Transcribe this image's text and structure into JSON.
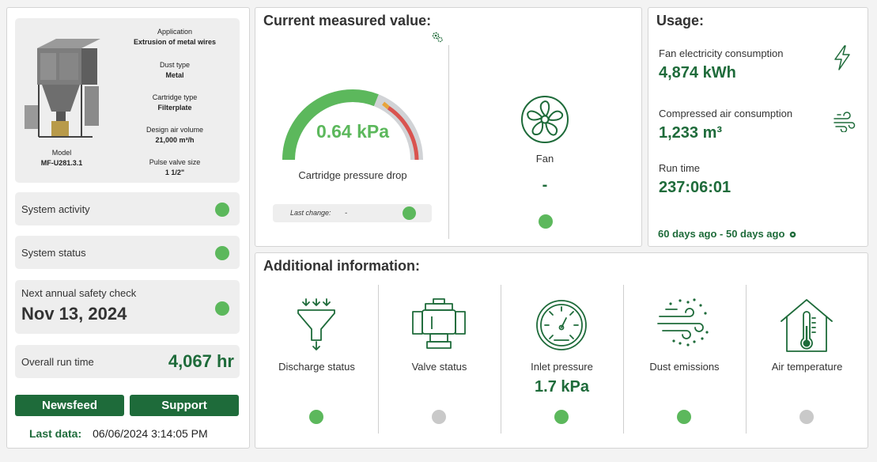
{
  "machine": {
    "model_label": "Model",
    "model": "MF-U281.3.1",
    "specs": [
      {
        "label": "Application",
        "value": "Extrusion of metal wires"
      },
      {
        "label": "Dust type",
        "value": "Metal"
      },
      {
        "label": "Cartridge type",
        "value": "Filterplate"
      },
      {
        "label": "Design air volume",
        "value": "21,000 m³/h"
      },
      {
        "label": "Pulse valve size",
        "value": "1 1/2\""
      }
    ]
  },
  "left_status": {
    "system_activity": {
      "label": "System activity",
      "status": "green"
    },
    "system_status": {
      "label": "System status",
      "status": "green"
    },
    "safety_check": {
      "label": "Next annual safety check",
      "date": "Nov 13, 2024",
      "status": "green"
    },
    "overall_run_time": {
      "label": "Overall run time",
      "value": "4,067 hr"
    }
  },
  "buttons": {
    "newsfeed": "Newsfeed",
    "support": "Support"
  },
  "last_data": {
    "label": "Last data:",
    "value": "06/06/2024 3:14:05 PM"
  },
  "current": {
    "title": "Current measured value:",
    "gauge": {
      "value": "0.64 kPa",
      "label": "Cartridge pressure drop",
      "fill_fraction": 0.62
    },
    "last_change": {
      "label": "Last change:",
      "value": "-",
      "status": "green"
    },
    "fan": {
      "label": "Fan",
      "value": "-",
      "status": "green"
    }
  },
  "usage": {
    "title": "Usage:",
    "fan_electricity": {
      "label": "Fan electricity consumption",
      "value": "4,874 kWh"
    },
    "compressed_air": {
      "label": "Compressed air consumption",
      "value": "1,233 m³"
    },
    "run_time": {
      "label": "Run time",
      "value": "237:06:01"
    },
    "range": "60 days ago - 50 days ago"
  },
  "additional": {
    "title": "Additional information:",
    "items": [
      {
        "label": "Discharge status",
        "value": "",
        "status": "green",
        "icon": "funnel-icon"
      },
      {
        "label": "Valve status",
        "value": "",
        "status": "grey",
        "icon": "valve-icon"
      },
      {
        "label": "Inlet pressure",
        "value": "1.7 kPa",
        "status": "green",
        "icon": "pressure-gauge-icon"
      },
      {
        "label": "Dust emissions",
        "value": "",
        "status": "green",
        "icon": "dust-wind-icon"
      },
      {
        "label": "Air temperature",
        "value": "",
        "status": "grey",
        "icon": "house-thermometer-icon"
      }
    ]
  },
  "colors": {
    "brand_green": "#1e6b3a",
    "status_green": "#5cb85c",
    "status_grey": "#c9c9c9",
    "gauge_orange": "#e8a43a",
    "gauge_red": "#d9534f"
  }
}
